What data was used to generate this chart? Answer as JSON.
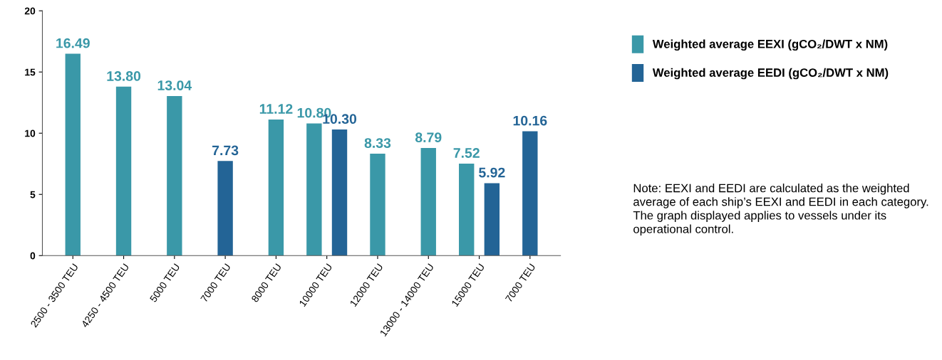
{
  "chart_data": {
    "type": "bar",
    "categories": [
      "2500 - 3500 TEU",
      "4250 - 4500 TEU",
      "5000 TEU",
      "7000 TEU",
      "8000 TEU",
      "10000 TEU",
      "12000 TEU",
      "13000 - 14000 TEU",
      "15000 TEU",
      "7000 TEU"
    ],
    "series": [
      {
        "name": "Weighted average EEXI (gCO₂/DWT x NM)",
        "color": "#3a98a8",
        "values": [
          16.49,
          13.8,
          13.04,
          null,
          11.12,
          10.8,
          8.33,
          8.79,
          7.52,
          null
        ],
        "value_labels": [
          "16.49",
          "13.80",
          "13.04",
          null,
          "11.12",
          "10.80",
          "8.33",
          "8.79",
          "7.52",
          null
        ]
      },
      {
        "name": "Weighted average EEDI (gCO₂/DWT x NM)",
        "color": "#236496",
        "values": [
          null,
          null,
          null,
          7.73,
          null,
          10.3,
          null,
          null,
          5.92,
          10.16
        ],
        "value_labels": [
          null,
          null,
          null,
          "7.73",
          null,
          "10.30",
          null,
          null,
          "5.92",
          "10.16"
        ]
      }
    ],
    "ylim": [
      0,
      20
    ],
    "yticks": [
      0,
      5,
      10,
      15,
      20
    ],
    "grid": false,
    "legend": "right",
    "annotations": [
      "Note: EEXI and EEDI are calculated as the weighted average of each ship’s EEXI and EEDI in each category. The graph displayed applies to vessels under its operational control."
    ]
  }
}
